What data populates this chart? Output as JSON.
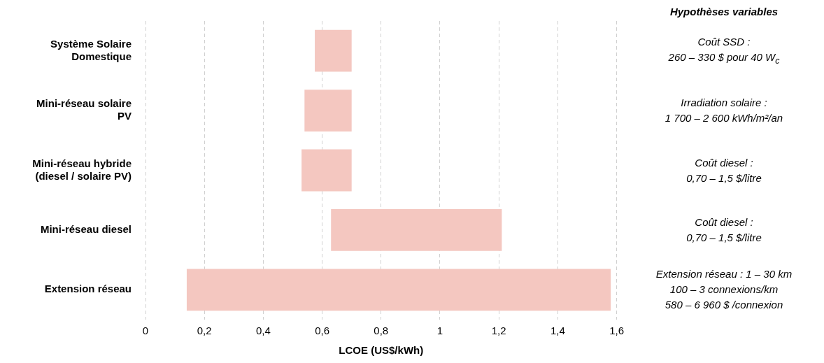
{
  "chart_data": {
    "type": "bar",
    "orientation": "horizontal",
    "xlabel": "LCOE (US$/kWh)",
    "categories": [
      "Système Solaire Domestique",
      "Mini-réseau solaire PV",
      "Mini-réseau hybride (diesel / solaire PV)",
      "Mini-réseau diesel",
      "Extension réseau"
    ],
    "base": [
      0.575,
      0.54,
      0.53,
      0.63,
      0.14
    ],
    "values": [
      0.125,
      0.16,
      0.17,
      0.58,
      1.44
    ],
    "color": "#f4c7c0",
    "xlim": [
      0,
      1.6
    ],
    "xticks": [
      {
        "value": 0,
        "label": "0"
      },
      {
        "value": 0.2,
        "label": "0,2"
      },
      {
        "value": 0.4,
        "label": "0,4"
      },
      {
        "value": 0.6,
        "label": "0,6"
      },
      {
        "value": 0.8,
        "label": "0,8"
      },
      {
        "value": 1,
        "label": "1"
      },
      {
        "value": 1.2,
        "label": "1,2"
      },
      {
        "value": 1.4,
        "label": "1,4"
      },
      {
        "value": 1.6,
        "label": "1,6"
      }
    ],
    "grid": "x",
    "legend": false,
    "annotations": [
      "Hypothèses variables",
      "Coût SSD :\n260 – 330 $ pour 40 W$_{c}$",
      "Irradiation solaire :\n1 700 – 2 600 kWh/m²/an",
      "Coût diesel :\n0,70 – 1,5 $/litre",
      "Coût diesel :\n0,70 – 1,5 $/litre",
      "Extension réseau : 1 – 30 km\n100 – 3 connexions/km\n580 – 6 960 $ /connexion"
    ]
  }
}
